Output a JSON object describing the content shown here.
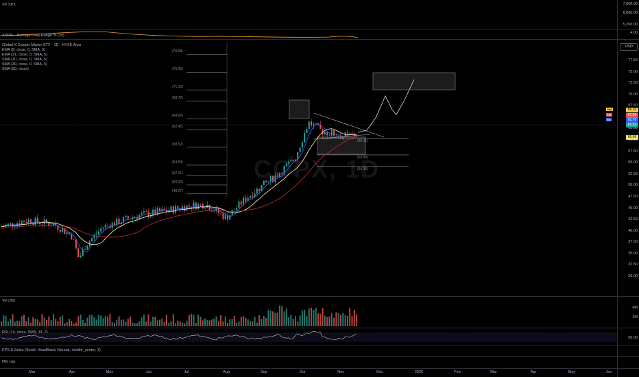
{
  "panes": {
    "spx": {
      "label": "SP:SPX",
      "ticks": [
        "7,000.00",
        "6,000.00",
        "5,200.00"
      ]
    },
    "adr": {
      "label": "ADR% - Average Daily Range % (20)",
      "value": "4.00"
    },
    "main": {
      "legend": [
        "Global X Copper Miners ETF · 1D · NYSE Arca",
        "EMA (8, close, 0, SMA, 5)",
        "EMA (21, close, 0, SMA, 5)",
        "SMA (10, close, 0, SMA, 5)",
        "SMA (30, close, 0, SMA, 5)",
        "SMA (50, close)"
      ],
      "currency": "USD",
      "watermark": "COPX, 1D",
      "fib_levels_left": [
        "(78.98)",
        "(75.05)",
        "(71.15)",
        "(68.72)",
        "(64.82)",
        "(62.41)",
        "(58.52)",
        "(54.59)",
        "(52.21)",
        "(50.22)",
        "(48.27)"
      ],
      "fib_levels_right": [
        "(60.41)",
        "(56.85)",
        "(54.35)"
      ],
      "price_ticks": [
        "77.50",
        "75.00",
        "72.50",
        "70.00",
        "67.50",
        "65.00",
        "62.50",
        "60.00",
        "57.50",
        "55.00",
        "52.50",
        "50.00",
        "47.50",
        "45.00",
        "42.50",
        "40.00",
        "37.50",
        "35.00",
        "32.50",
        "30.00"
      ],
      "tags": {
        "high": {
          "label": "High",
          "value": "66.20"
        },
        "ask": {
          "label": "Ask",
          "value": "63.90"
        },
        "bid": {
          "label": "Bid",
          "value": "61.76"
        },
        "last": {
          "value": "61.32"
        },
        "ma": {
          "value": "60.66"
        }
      }
    },
    "vol": {
      "label": "Vol (30)",
      "ticks": [
        "4M",
        "2M"
      ]
    },
    "rsi": {
      "label": "RSI (14, close, SMA, 14, 2)",
      "value": "50.00"
    },
    "eps": {
      "label": "EPS & Sales (Small, HeadBand, Normal, middle_center, 1)"
    },
    "mcap": {
      "label": "Mkt cap"
    }
  },
  "time_axis": [
    "Mar",
    "Apr",
    "May",
    "Jun",
    "Jul",
    "Aug",
    "Sep",
    "Oct",
    "Nov",
    "Dec",
    "2026",
    "Feb",
    "Mar",
    "Apr",
    "May",
    "Jun"
  ],
  "colors": {
    "up": "#26a69a",
    "down": "#ef5350",
    "ema8": "#2962ff",
    "ema21": "#f5e6a8",
    "sma50": "#b22833",
    "fib": "#d1d4dc"
  }
}
